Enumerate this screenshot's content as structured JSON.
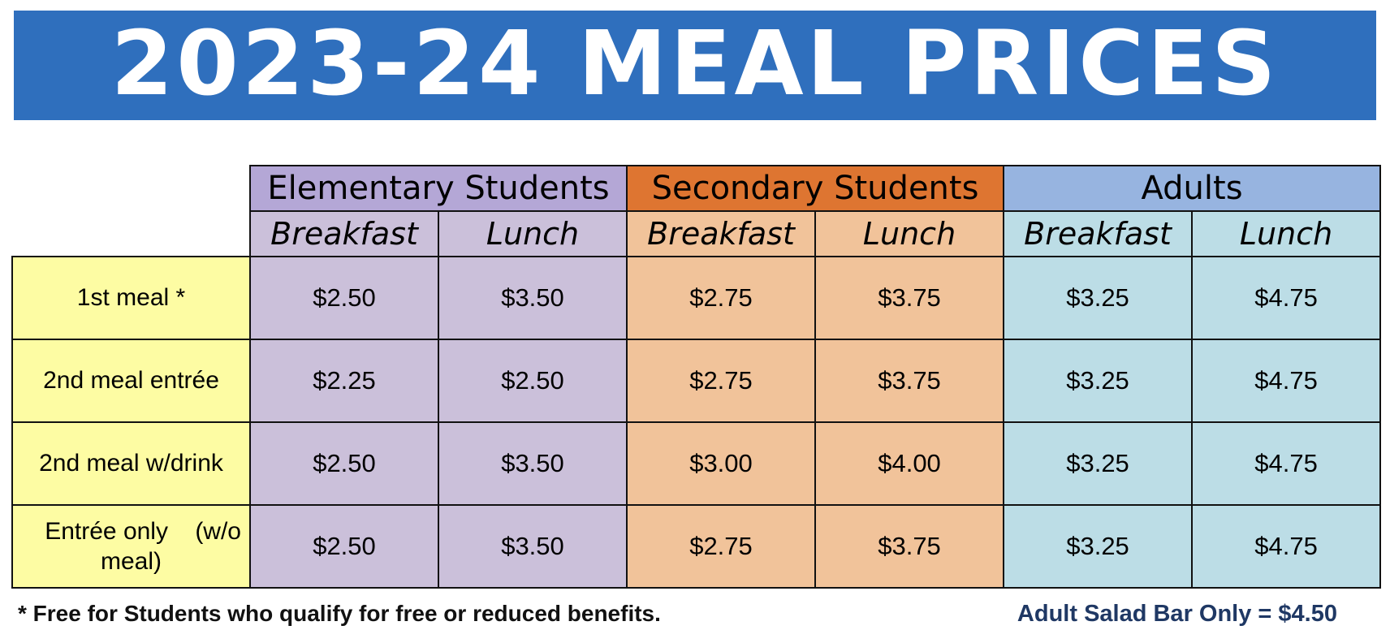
{
  "banner": {
    "title": "2023-24 MEAL PRICES"
  },
  "groups": [
    {
      "label": "Elementary Students",
      "color": "#b4a7d6"
    },
    {
      "label": "Secondary Students",
      "color": "#de7531"
    },
    {
      "label": "Adults",
      "color": "#97b4e0"
    }
  ],
  "meal_types": [
    "Breakfast",
    "Lunch",
    "Breakfast",
    "Lunch",
    "Breakfast",
    "Lunch"
  ],
  "rows": [
    {
      "label": "1st meal *",
      "prices": [
        "$2.50",
        "$3.50",
        "$2.75",
        "$3.75",
        "$3.25",
        "$4.75"
      ]
    },
    {
      "label": "2nd meal entrée",
      "prices": [
        "$2.25",
        "$2.50",
        "$2.75",
        "$3.75",
        "$3.25",
        "$4.75"
      ]
    },
    {
      "label": "2nd meal w/drink",
      "prices": [
        "$2.50",
        "$3.50",
        "$3.00",
        "$4.00",
        "$3.25",
        "$4.75"
      ]
    },
    {
      "label_line1": "Entrée only    (w/o",
      "label_line2": "meal)",
      "prices": [
        "$2.50",
        "$3.50",
        "$2.75",
        "$3.75",
        "$3.25",
        "$4.75"
      ]
    }
  ],
  "footnote": "* Free for Students who qualify for free or reduced benefits.",
  "salad_note": "Adult Salad Bar Only = $4.50"
}
